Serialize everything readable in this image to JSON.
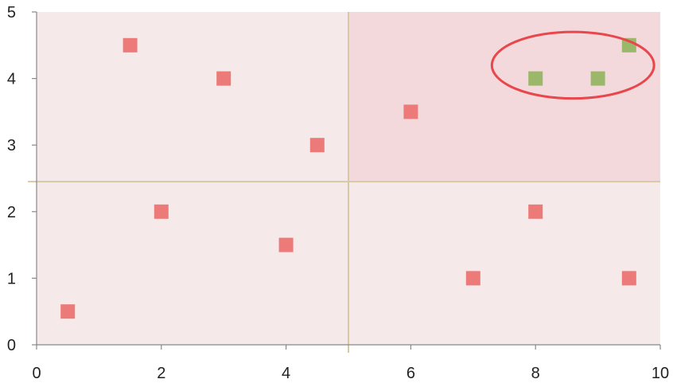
{
  "chart_data": {
    "type": "scatter",
    "title": "",
    "xlabel": "",
    "ylabel": "",
    "xlim": [
      0,
      10
    ],
    "ylim": [
      0,
      5
    ],
    "x_ticks": [
      "0",
      "2",
      "4",
      "6",
      "8",
      "10"
    ],
    "y_ticks": [
      "0",
      "1",
      "2",
      "3",
      "4",
      "5"
    ],
    "grid": false,
    "quadrant_split": {
      "x": 5,
      "y": 2.45
    },
    "quadrant_colors": {
      "top_left": "#f6e9ea",
      "top_right": "#f4d9dc",
      "bottom_left": "#f6e9ea",
      "bottom_right": "#f6e9ea"
    },
    "divider_color": "#d6c9a8",
    "series": [
      {
        "color": "#ec7a78",
        "marker": "square",
        "points": [
          [
            0.5,
            0.5
          ],
          [
            1.5,
            4.5
          ],
          [
            2,
            2
          ],
          [
            3,
            4
          ],
          [
            4,
            1.5
          ],
          [
            4.5,
            3
          ],
          [
            6,
            3.5
          ],
          [
            7,
            1
          ],
          [
            8,
            2
          ],
          [
            9.5,
            1
          ]
        ]
      },
      {
        "color": "#9bb86a",
        "marker": "square",
        "points": [
          [
            8,
            4
          ],
          [
            9,
            4
          ],
          [
            9.5,
            4.5
          ]
        ]
      }
    ],
    "annotation": {
      "shape": "ellipse",
      "center": [
        8.6,
        4.2
      ],
      "rx": 1.3,
      "ry": 0.5,
      "color": "#e8474c"
    }
  }
}
